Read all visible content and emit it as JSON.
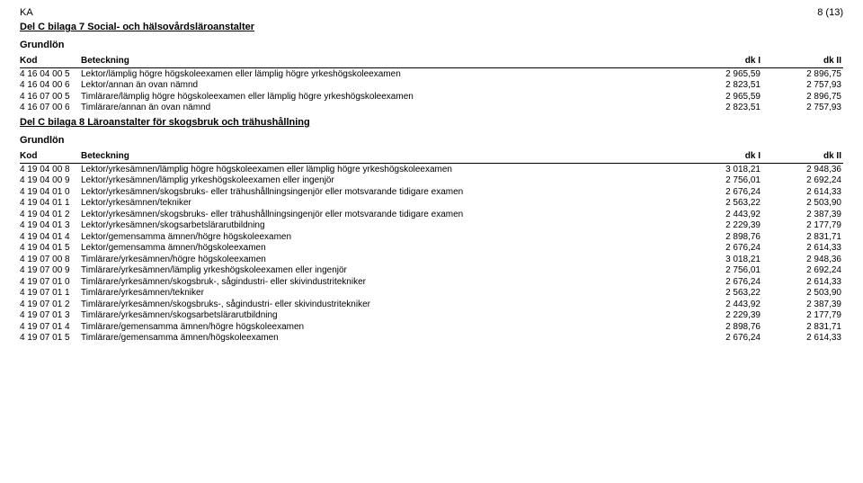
{
  "header": {
    "left": "KA",
    "right": "8 (13)"
  },
  "sections": [
    {
      "title": "Del C bilaga 7 Social- och hälsovårdsläroanstalter",
      "grundlon": "Grundlön",
      "columns": {
        "kod": "Kod",
        "bet": "Beteckning",
        "d1": "dk I",
        "d2": "dk II"
      },
      "rows": [
        {
          "kod": "4 16 04 00 5",
          "bet": "Lektor/lämplig högre högskoleexamen eller lämplig högre yrkeshögskoleexamen",
          "d1": "2 965,59",
          "d2": "2 896,75"
        },
        {
          "kod": "4 16 04 00 6",
          "bet": "Lektor/annan än ovan nämnd",
          "d1": "2 823,51",
          "d2": "2 757,93"
        },
        {
          "kod": "4 16 07 00 5",
          "bet": "Timlärare/lämplig högre högskoleexamen eller lämplig högre yrkeshögskoleexamen",
          "d1": "2 965,59",
          "d2": "2 896,75"
        },
        {
          "kod": "4 16 07 00 6",
          "bet": "Timlärare/annan än ovan nämnd",
          "d1": "2 823,51",
          "d2": "2 757,93"
        }
      ]
    },
    {
      "title": "Del C bilaga 8 Läroanstalter för skogsbruk och trähushållning",
      "grundlon": "Grundlön",
      "columns": {
        "kod": "Kod",
        "bet": "Beteckning",
        "d1": "dk I",
        "d2": "dk II"
      },
      "rows": [
        {
          "kod": "4 19 04 00 8",
          "bet": "Lektor/yrkesämnen/lämplig högre högskoleexamen eller lämplig högre yrkeshögskoleexamen",
          "d1": "3 018,21",
          "d2": "2 948,36"
        },
        {
          "kod": "4 19 04 00 9",
          "bet": "Lektor/yrkesämnen/lämplig yrkeshögskoleexamen eller ingenjör",
          "d1": "2 756,01",
          "d2": "2 692,24"
        },
        {
          "kod": "4 19 04 01 0",
          "bet": "Lektor/yrkesämnen/skogsbruks- eller trähushållningsingenjör eller motsvarande tidigare examen",
          "d1": "2 676,24",
          "d2": "2 614,33"
        },
        {
          "kod": "4 19 04 01 1",
          "bet": "Lektor/yrkesämnen/tekniker",
          "d1": "2 563,22",
          "d2": "2 503,90"
        },
        {
          "kod": "4 19 04 01 2",
          "bet": "Lektor/yrkesämnen/skogsbruks- eller trähushållningsingenjör eller motsvarande tidigare examen",
          "d1": "2 443,92",
          "d2": "2 387,39"
        },
        {
          "kod": "4 19 04 01 3",
          "bet": "Lektor/yrkesämnen/skogsarbetslärarutbildning",
          "d1": "2 229,39",
          "d2": "2 177,79"
        },
        {
          "kod": "4 19 04 01 4",
          "bet": "Lektor/gemensamma ämnen/högre högskoleexamen",
          "d1": "2 898,76",
          "d2": "2 831,71"
        },
        {
          "kod": "4 19 04 01 5",
          "bet": "Lektor/gemensamma ämnen/högskoleexamen",
          "d1": "2 676,24",
          "d2": "2 614,33"
        },
        {
          "kod": "4 19 07 00 8",
          "bet": "Timlärare/yrkesämnen/högre högskoleexamen",
          "d1": "3 018,21",
          "d2": "2 948,36"
        },
        {
          "kod": "4 19 07 00 9",
          "bet": "Timlärare/yrkesämnen/lämplig yrkeshögskoleexamen eller ingenjör",
          "d1": "2 756,01",
          "d2": "2 692,24"
        },
        {
          "kod": "4 19 07 01 0",
          "bet": "Timlärare/yrkesämnen/skogsbruk-, sågindustri- eller skivindustritekniker",
          "d1": "2 676,24",
          "d2": "2 614,33"
        },
        {
          "kod": "4 19 07 01 1",
          "bet": "Timlärare/yrkesämnen/tekniker",
          "d1": "2 563,22",
          "d2": "2 503,90"
        },
        {
          "kod": "4 19 07 01 2",
          "bet": "Timlärare/yrkesämnen/skogsbruks-, sågindustri- eller skivindustritekniker",
          "d1": "2 443,92",
          "d2": "2 387,39"
        },
        {
          "kod": "4 19 07 01 3",
          "bet": "Timlärare/yrkesämnen/skogsarbetslärarutbildning",
          "d1": "2 229,39",
          "d2": "2 177,79"
        },
        {
          "kod": "4 19 07 01 4",
          "bet": "Timlärare/gemensamma ämnen/högre högskoleexamen",
          "d1": "2 898,76",
          "d2": "2 831,71"
        },
        {
          "kod": "4 19 07 01 5",
          "bet": "Timlärare/gemensamma ämnen/högskoleexamen",
          "d1": "2 676,24",
          "d2": "2 614,33"
        }
      ]
    }
  ]
}
